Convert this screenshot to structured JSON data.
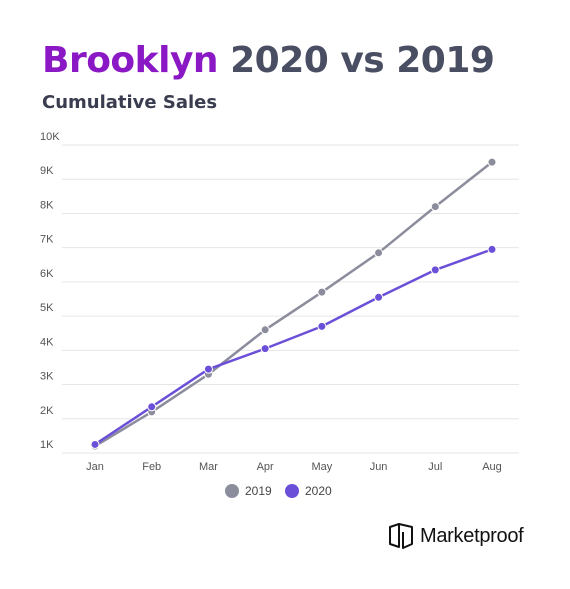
{
  "header": {
    "title_accent": "Brooklyn",
    "title_rest": "2020 vs 2019",
    "subtitle": "Cumulative Sales"
  },
  "brand": {
    "name": "Marketproof",
    "icon": "marketproof-logo-icon"
  },
  "colors": {
    "title_accent": "#8a18c4",
    "series_2019": "#8b8d9c",
    "series_2020": "#6b4fd8",
    "grid": "#e6e6e6"
  },
  "chart_data": {
    "type": "line",
    "title": "",
    "xlabel": "",
    "ylabel": "",
    "categories": [
      "Jan",
      "Feb",
      "Mar",
      "Apr",
      "May",
      "Jun",
      "Jul",
      "Aug"
    ],
    "y_ticks": [
      "1K",
      "2K",
      "3K",
      "4K",
      "5K",
      "6K",
      "7K",
      "8K",
      "9K",
      "10K"
    ],
    "ylim": [
      1000,
      10000
    ],
    "grid": true,
    "legend_position": "bottom",
    "series": [
      {
        "name": "2019",
        "values": [
          1200,
          2200,
          3300,
          4600,
          5700,
          6850,
          8200,
          9500
        ]
      },
      {
        "name": "2020",
        "values": [
          1250,
          2350,
          3450,
          4050,
          4700,
          5550,
          6350,
          6950
        ]
      }
    ]
  }
}
